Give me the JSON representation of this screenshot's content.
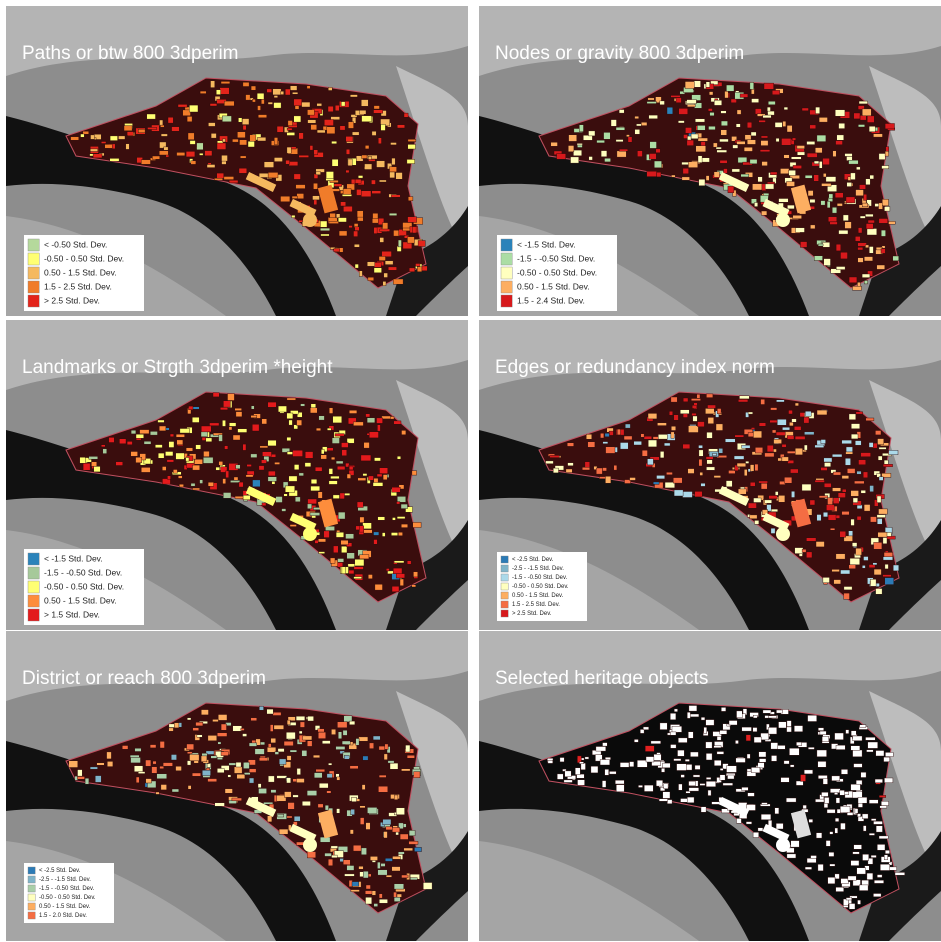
{
  "panels": [
    {
      "title": "Paths or btw 800 3dperim",
      "legend": [
        {
          "label": "< -0.50 Std. Dev.",
          "color": "#b5d99c"
        },
        {
          "label": "-0.50 - 0.50 Std. Dev.",
          "color": "#ffff73"
        },
        {
          "label": "0.50 - 1.5 Std. Dev.",
          "color": "#f5b95f"
        },
        {
          "label": "1.5 - 2.5 Std. Dev.",
          "color": "#f07c2a"
        },
        {
          "label": "> 2.5 Std. Dev.",
          "color": "#e3241b"
        }
      ]
    },
    {
      "title": "Nodes or gravity 800 3dperim",
      "legend": [
        {
          "label": "< -1.5 Std. Dev.",
          "color": "#2b83ba"
        },
        {
          "label": "-1.5 - -0.50 Std. Dev.",
          "color": "#abdda4"
        },
        {
          "label": "-0.50 - 0.50 Std. Dev.",
          "color": "#ffffbf"
        },
        {
          "label": "0.50 - 1.5 Std. Dev.",
          "color": "#fdae61"
        },
        {
          "label": "1.5 - 2.4 Std. Dev.",
          "color": "#d7191c"
        }
      ]
    },
    {
      "title": "Landmarks or Strgth 3dperim *height",
      "legend": [
        {
          "label": "< -1.5 Std. Dev.",
          "color": "#2b83ba"
        },
        {
          "label": "-1.5 - -0.50 Std. Dev.",
          "color": "#a6c99a"
        },
        {
          "label": "-0.50 - 0.50 Std. Dev.",
          "color": "#ffff73"
        },
        {
          "label": "0.50 - 1.5 Std. Dev.",
          "color": "#fd8d3c"
        },
        {
          "label": "> 1.5 Std. Dev.",
          "color": "#e31a1c"
        }
      ]
    },
    {
      "title": "Edges or redundancy index norm",
      "legend": [
        {
          "label": "< -2.5 Std. Dev.",
          "color": "#2c7bb6"
        },
        {
          "label": "-2.5 - -1.5 Std. Dev.",
          "color": "#7fb4c9"
        },
        {
          "label": "-1.5 - -0.50 Std. Dev.",
          "color": "#abd9e9"
        },
        {
          "label": "-0.50 - 0.50 Std. Dev.",
          "color": "#ffffbf"
        },
        {
          "label": "0.50 - 1.5 Std. Dev.",
          "color": "#fdae61"
        },
        {
          "label": "1.5 - 2.5 Std. Dev.",
          "color": "#f46d43"
        },
        {
          "label": "> 2.5 Std. Dev.",
          "color": "#d7191c"
        }
      ]
    },
    {
      "title": "District or reach 800 3dperim",
      "legend": [
        {
          "label": "< -2.5 Std. Dev.",
          "color": "#2c7bb6"
        },
        {
          "label": "-2.5 - -1.5 Std. Dev.",
          "color": "#7fb4c9"
        },
        {
          "label": "-1.5 - -0.50 Std. Dev.",
          "color": "#a9cfa8"
        },
        {
          "label": "-0.50 - 0.50 Std. Dev.",
          "color": "#ffffbf"
        },
        {
          "label": "0.50 - 1.5 Std. Dev.",
          "color": "#fdae61"
        },
        {
          "label": "1.5 - 2.0 Std. Dev.",
          "color": "#f46d43"
        }
      ]
    },
    {
      "title": "Selected heritage objects"
    }
  ]
}
